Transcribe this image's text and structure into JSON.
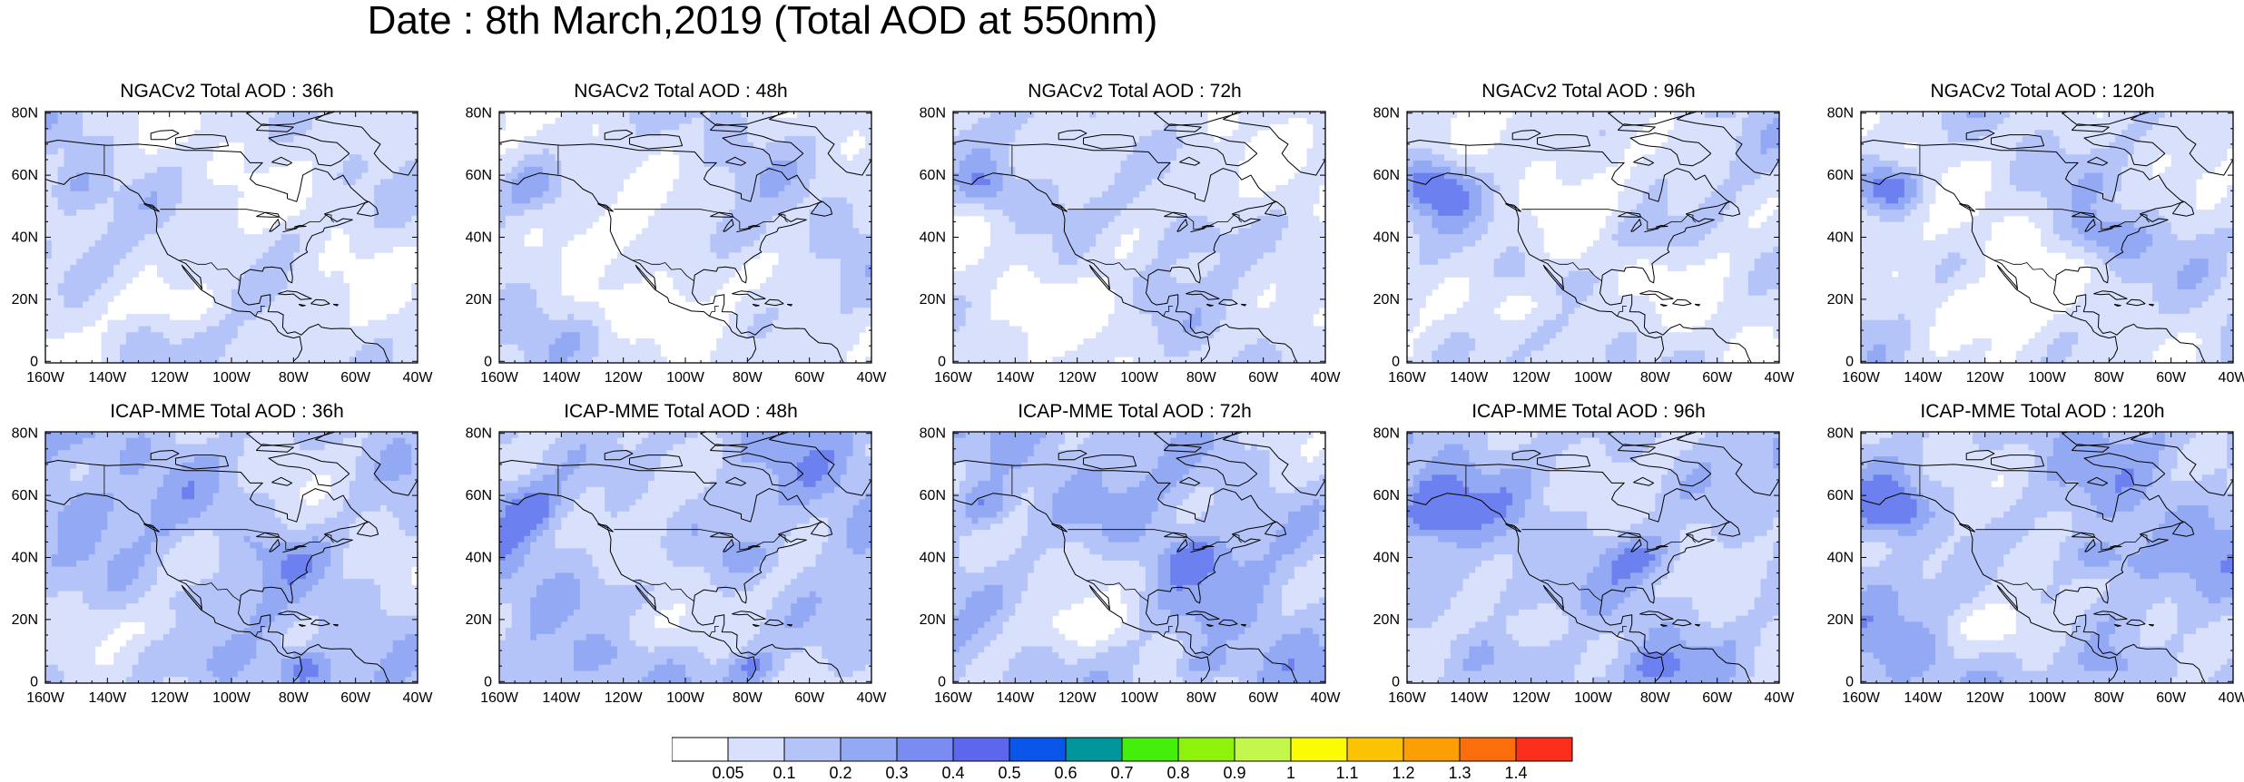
{
  "figure": {
    "title": "Date : 8th March,2019 (Total AOD at 550nm)"
  },
  "axes": {
    "x_ticks": [
      "160W",
      "140W",
      "120W",
      "100W",
      "80W",
      "60W",
      "40W"
    ],
    "y_ticks": [
      "0",
      "20N",
      "40N",
      "60N",
      "80N"
    ]
  },
  "panels": [
    {
      "title": "NGACv2 Total AOD : 36h",
      "model": "NGACv2",
      "lead": "36h"
    },
    {
      "title": "NGACv2 Total AOD : 48h",
      "model": "NGACv2",
      "lead": "48h"
    },
    {
      "title": "NGACv2 Total AOD : 72h",
      "model": "NGACv2",
      "lead": "72h"
    },
    {
      "title": "NGACv2 Total AOD : 96h",
      "model": "NGACv2",
      "lead": "96h"
    },
    {
      "title": "NGACv2 Total AOD : 120h",
      "model": "NGACv2",
      "lead": "120h"
    },
    {
      "title": "ICAP-MME Total AOD : 36h",
      "model": "ICAP-MME",
      "lead": "36h"
    },
    {
      "title": "ICAP-MME Total AOD : 48h",
      "model": "ICAP-MME",
      "lead": "48h"
    },
    {
      "title": "ICAP-MME Total AOD : 72h",
      "model": "ICAP-MME",
      "lead": "72h"
    },
    {
      "title": "ICAP-MME Total AOD : 96h",
      "model": "ICAP-MME",
      "lead": "96h"
    },
    {
      "title": "ICAP-MME Total AOD : 120h",
      "model": "ICAP-MME",
      "lead": "120h"
    }
  ],
  "colorbar": {
    "labels": [
      "0.05",
      "0.1",
      "0.2",
      "0.3",
      "0.4",
      "0.5",
      "0.6",
      "0.7",
      "0.8",
      "0.9",
      "1",
      "1.1",
      "1.2",
      "1.3",
      "1.4"
    ],
    "colors": [
      "#ffffff",
      "#d8e0fb",
      "#b5c4f8",
      "#93a9f4",
      "#7a8cf1",
      "#5d67ee",
      "#0a55ea",
      "#00959a",
      "#44ef0b",
      "#8df20c",
      "#c3f74b",
      "#fbfb05",
      "#fcc304",
      "#fb9f05",
      "#fb6e0b",
      "#fb2e1b"
    ]
  },
  "map_colors": {
    "aod_light": "#d8e0fb",
    "aod_mid": "#b5c4f8",
    "aod_high": "#93a9f4",
    "aod_peak": "#6d80ef",
    "coastline": "#000000"
  }
}
